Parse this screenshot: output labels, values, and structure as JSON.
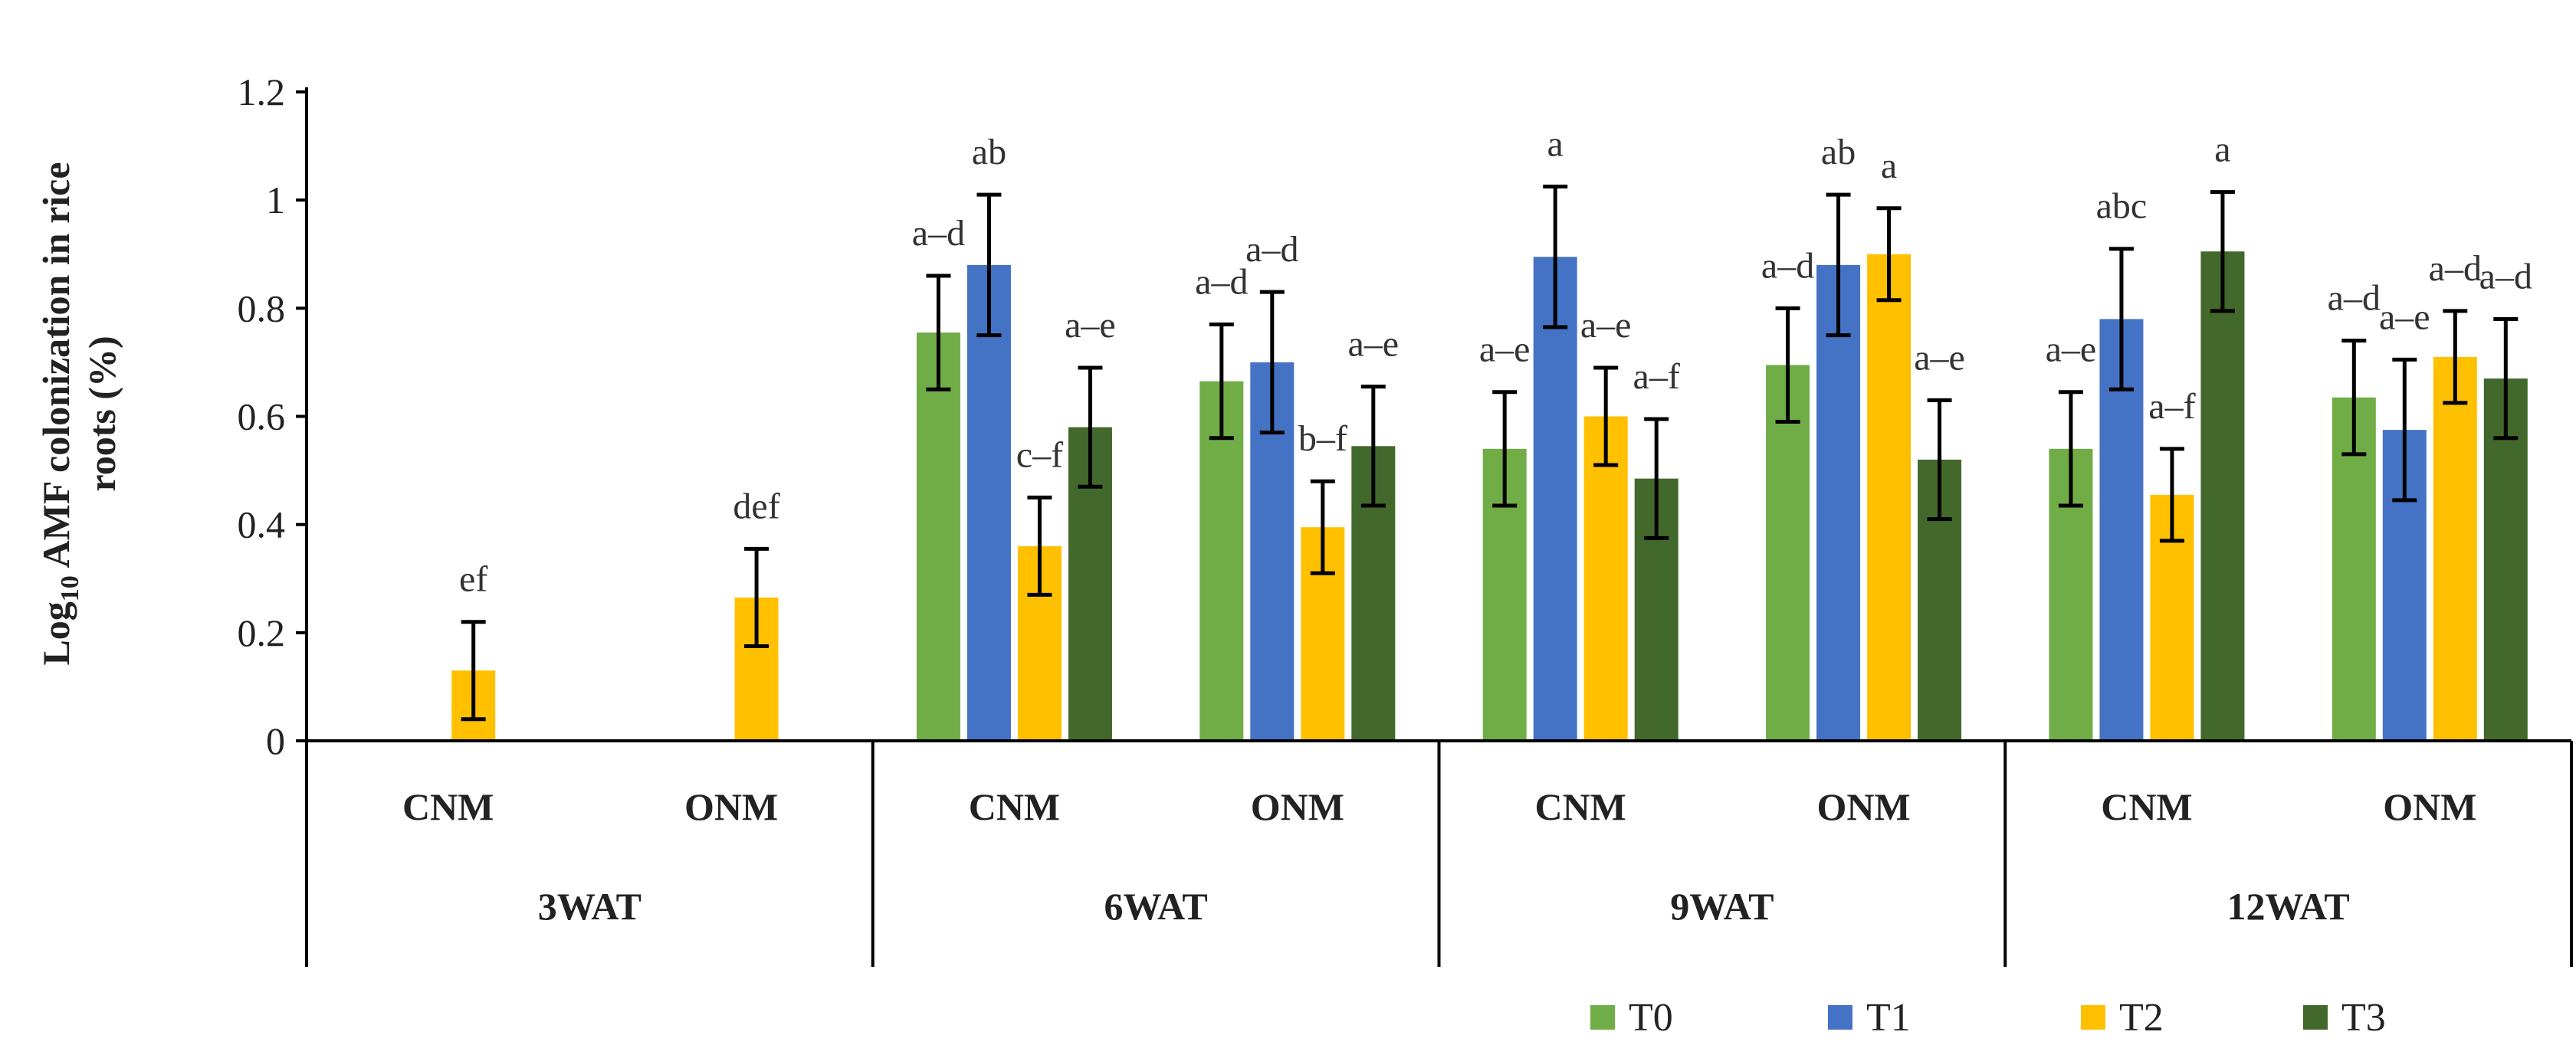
{
  "chart_data": {
    "type": "bar",
    "title": "",
    "ylabel_parts": [
      "Log",
      "10",
      " AMF colonization in rice",
      "roots (%)"
    ],
    "ylim": [
      0,
      1.2
    ],
    "yticks": [
      "0",
      "0.2",
      "0.4",
      "0.6",
      "0.8",
      "1",
      "1.2"
    ],
    "ytick_values": [
      0,
      0.2,
      0.4,
      0.6,
      0.8,
      1.0,
      1.2
    ],
    "colors": {
      "T0": "#70ad47",
      "T1": "#4472c4",
      "T2": "#ffc000",
      "T3": "#43682b"
    },
    "series_names": [
      "T0",
      "T1",
      "T2",
      "T3"
    ],
    "groups": [
      {
        "name": "3WAT",
        "subgroups": [
          {
            "name": "CNM",
            "bars": [
              {
                "series": "T2",
                "value": 0.13,
                "error": 0.09,
                "label": "ef"
              }
            ]
          },
          {
            "name": "ONM",
            "bars": [
              {
                "series": "T2",
                "value": 0.265,
                "error": 0.09,
                "label": "def"
              }
            ]
          }
        ]
      },
      {
        "name": "6WAT",
        "subgroups": [
          {
            "name": "CNM",
            "bars": [
              {
                "series": "T0",
                "value": 0.755,
                "error": 0.105,
                "label": "a–d"
              },
              {
                "series": "T1",
                "value": 0.88,
                "error": 0.13,
                "label": "ab"
              },
              {
                "series": "T2",
                "value": 0.36,
                "error": 0.09,
                "label": "c–f"
              },
              {
                "series": "T3",
                "value": 0.58,
                "error": 0.11,
                "label": "a–e"
              }
            ]
          },
          {
            "name": "ONM",
            "bars": [
              {
                "series": "T0",
                "value": 0.665,
                "error": 0.105,
                "label": "a–d"
              },
              {
                "series": "T1",
                "value": 0.7,
                "error": 0.13,
                "label": "a–d"
              },
              {
                "series": "T2",
                "value": 0.395,
                "error": 0.085,
                "label": "b–f"
              },
              {
                "series": "T3",
                "value": 0.545,
                "error": 0.11,
                "label": "a–e"
              }
            ]
          }
        ]
      },
      {
        "name": "9WAT",
        "subgroups": [
          {
            "name": "CNM",
            "bars": [
              {
                "series": "T0",
                "value": 0.54,
                "error": 0.105,
                "label": "a–e"
              },
              {
                "series": "T1",
                "value": 0.895,
                "error": 0.13,
                "label": "a"
              },
              {
                "series": "T2",
                "value": 0.6,
                "error": 0.09,
                "label": "a–e"
              },
              {
                "series": "T3",
                "value": 0.485,
                "error": 0.11,
                "label": "a–f"
              }
            ]
          },
          {
            "name": "ONM",
            "bars": [
              {
                "series": "T0",
                "value": 0.695,
                "error": 0.105,
                "label": "a–d"
              },
              {
                "series": "T1",
                "value": 0.88,
                "error": 0.13,
                "label": "ab"
              },
              {
                "series": "T2",
                "value": 0.9,
                "error": 0.085,
                "label": "a"
              },
              {
                "series": "T3",
                "value": 0.52,
                "error": 0.11,
                "label": "a–e"
              }
            ]
          }
        ]
      },
      {
        "name": "12WAT",
        "subgroups": [
          {
            "name": "CNM",
            "bars": [
              {
                "series": "T0",
                "value": 0.54,
                "error": 0.105,
                "label": "a–e"
              },
              {
                "series": "T1",
                "value": 0.78,
                "error": 0.13,
                "label": "abc"
              },
              {
                "series": "T2",
                "value": 0.455,
                "error": 0.085,
                "label": "a–f"
              },
              {
                "series": "T3",
                "value": 0.905,
                "error": 0.11,
                "label": "a"
              }
            ]
          },
          {
            "name": "ONM",
            "bars": [
              {
                "series": "T0",
                "value": 0.635,
                "error": 0.105,
                "label": "a–d"
              },
              {
                "series": "T1",
                "value": 0.575,
                "error": 0.13,
                "label": "a–e"
              },
              {
                "series": "T2",
                "value": 0.71,
                "error": 0.085,
                "label": "a–d"
              },
              {
                "series": "T3",
                "value": 0.67,
                "error": 0.11,
                "label": "a–d"
              }
            ]
          }
        ]
      }
    ],
    "legend": [
      "T0",
      "T1",
      "T2",
      "T3"
    ]
  }
}
